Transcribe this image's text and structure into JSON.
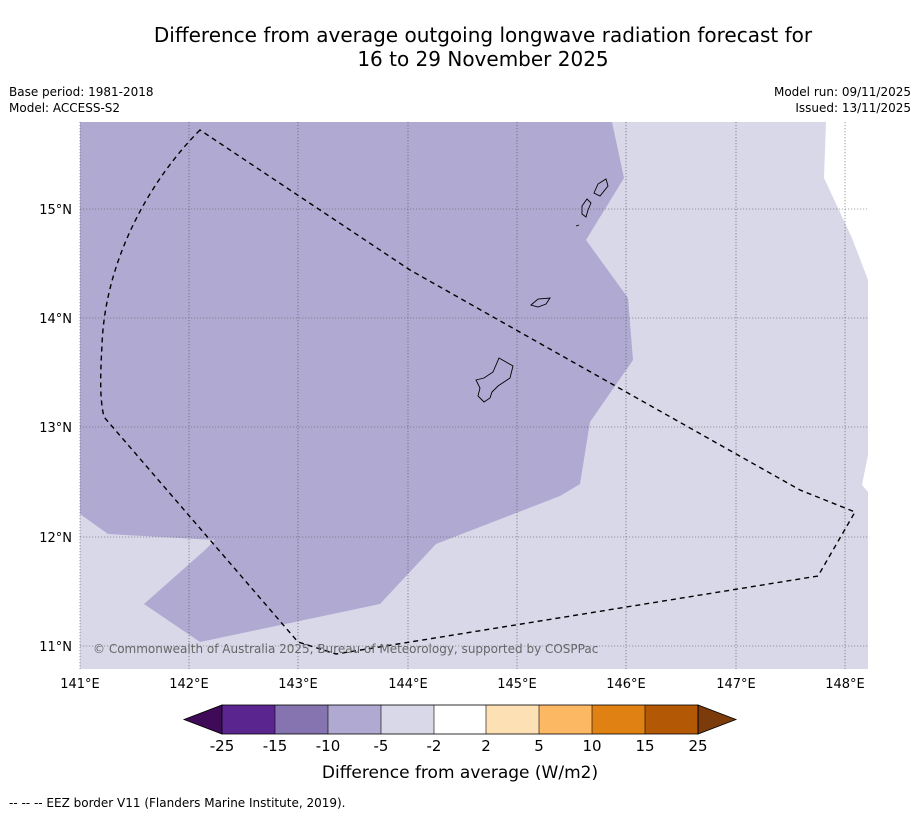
{
  "header": {
    "title_line1": "Difference from average outgoing longwave radiation forecast for",
    "title_line2": "16 to 29 November 2025",
    "base_period": "Base period: 1981-2018",
    "model": "Model: ACCESS-S2",
    "model_run": "Model run: 09/11/2025",
    "issued": "Issued: 13/11/2025"
  },
  "map": {
    "lon_labels": [
      "141°E",
      "142°E",
      "143°E",
      "144°E",
      "145°E",
      "146°E",
      "147°E",
      "148°E"
    ],
    "lat_labels": [
      "15°N",
      "14°N",
      "13°N",
      "12°N",
      "11°N"
    ],
    "copyright": "© Commonwealth of Australia 2025, Bureau of Meteorology, supported by COSPPac",
    "fill_colors": {
      "-5_to_-2": "#d8d8e9",
      "-10_to_-5": "#b0aad2"
    }
  },
  "colorbar": {
    "ticks": [
      "-25",
      "-15",
      "-10",
      "-5",
      "-2",
      "2",
      "5",
      "10",
      "15",
      "25"
    ],
    "colors": [
      "#3f0a57",
      "#5b2590",
      "#8574b0",
      "#b0aad2",
      "#d8d8e9",
      "#ffffff",
      "#fde0b4",
      "#fcb863",
      "#e08114",
      "#b35805",
      "#7c3b0a"
    ],
    "label": "Difference from average (W/m2)"
  },
  "footer": {
    "legend": "--  --  -- EEZ border V11 (Flanders Marine Institute, 2019)."
  }
}
